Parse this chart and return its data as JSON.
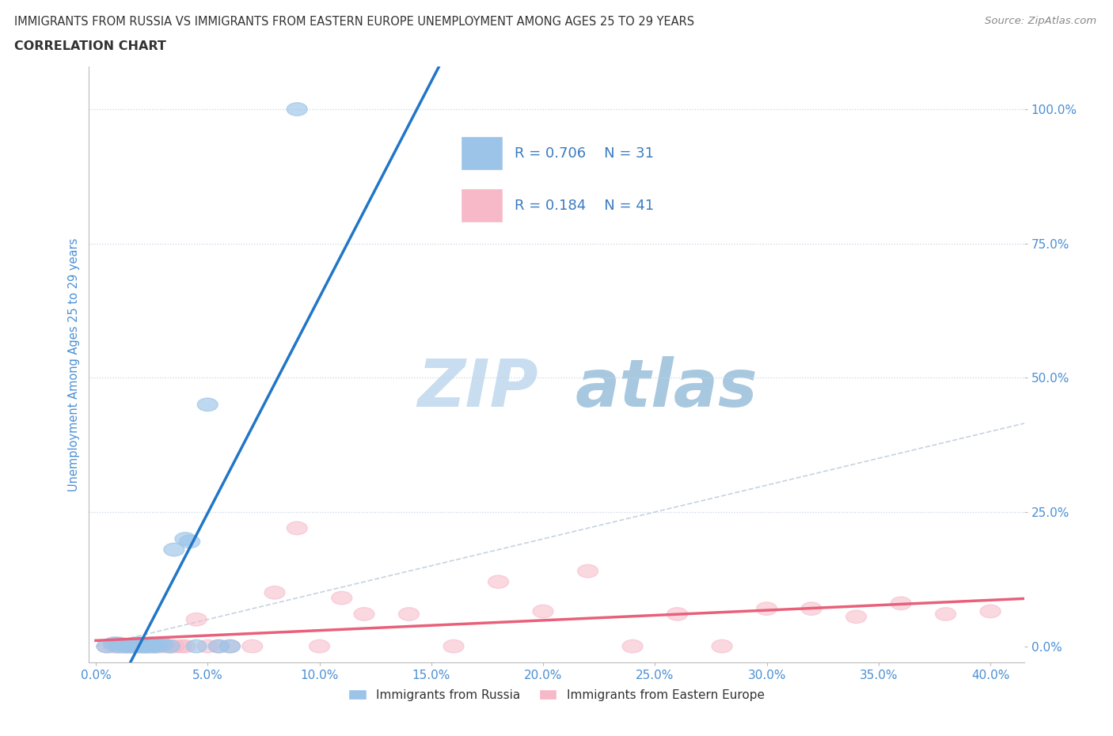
{
  "title_line1": "IMMIGRANTS FROM RUSSIA VS IMMIGRANTS FROM EASTERN EUROPE UNEMPLOYMENT AMONG AGES 25 TO 29 YEARS",
  "title_line2": "CORRELATION CHART",
  "source_text": "Source: ZipAtlas.com",
  "xlabel_ticks": [
    0.0,
    0.05,
    0.1,
    0.15,
    0.2,
    0.25,
    0.3,
    0.35,
    0.4
  ],
  "ylabel_ticks": [
    0.0,
    0.25,
    0.5,
    0.75,
    1.0
  ],
  "xlim": [
    -0.003,
    0.415
  ],
  "ylim": [
    -0.03,
    1.08
  ],
  "watermark": "ZIPatlas",
  "watermark_color": "#cce0f0",
  "series1_color": "#9bc4e8",
  "series2_color": "#f7b8c8",
  "series1_label": "Immigrants from Russia",
  "series2_label": "Immigrants from Eastern Europe",
  "series1_line_color": "#2176c7",
  "series2_line_color": "#e8607a",
  "legend_text_color": "#3a7bbf",
  "title_color": "#333333",
  "grid_color": "#c8d4e8",
  "tick_color": "#4a8fd4",
  "russia_x": [
    0.005,
    0.008,
    0.01,
    0.01,
    0.012,
    0.013,
    0.015,
    0.015,
    0.017,
    0.018,
    0.018,
    0.02,
    0.02,
    0.02,
    0.022,
    0.022,
    0.023,
    0.025,
    0.025,
    0.027,
    0.028,
    0.03,
    0.033,
    0.035,
    0.04,
    0.042,
    0.045,
    0.05,
    0.055,
    0.06,
    0.09
  ],
  "russia_y": [
    0.0,
    0.005,
    0.0,
    0.005,
    0.003,
    0.0,
    0.0,
    0.003,
    0.0,
    0.005,
    0.003,
    0.0,
    0.003,
    0.005,
    0.0,
    0.003,
    0.0,
    0.0,
    0.005,
    0.0,
    0.003,
    0.003,
    0.0,
    0.18,
    0.2,
    0.195,
    0.0,
    0.45,
    0.0,
    0.0,
    1.0
  ],
  "eastern_x": [
    0.005,
    0.008,
    0.01,
    0.012,
    0.013,
    0.015,
    0.015,
    0.018,
    0.02,
    0.022,
    0.025,
    0.027,
    0.03,
    0.033,
    0.035,
    0.038,
    0.04,
    0.045,
    0.05,
    0.055,
    0.06,
    0.07,
    0.08,
    0.09,
    0.1,
    0.11,
    0.12,
    0.14,
    0.16,
    0.18,
    0.2,
    0.22,
    0.24,
    0.26,
    0.28,
    0.3,
    0.32,
    0.34,
    0.36,
    0.38,
    0.4
  ],
  "eastern_y": [
    0.0,
    0.0,
    0.0,
    0.0,
    0.0,
    0.0,
    0.0,
    0.0,
    0.0,
    0.0,
    0.0,
    0.0,
    0.0,
    0.0,
    0.0,
    0.0,
    0.0,
    0.05,
    0.0,
    0.0,
    0.0,
    0.0,
    0.1,
    0.22,
    0.0,
    0.09,
    0.06,
    0.06,
    0.0,
    0.12,
    0.065,
    0.14,
    0.0,
    0.06,
    0.0,
    0.07,
    0.07,
    0.055,
    0.08,
    0.06,
    0.065
  ]
}
